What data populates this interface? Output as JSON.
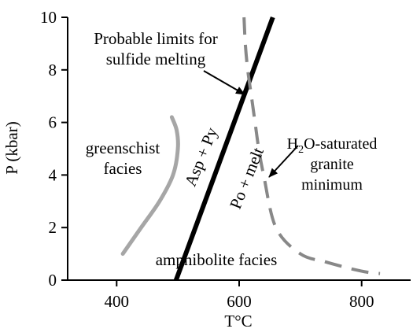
{
  "chart_data": {
    "type": "line",
    "xlabel": "T°C",
    "ylabel": "P (kbar)",
    "xlim": [
      320,
      880
    ],
    "ylim": [
      0,
      10
    ],
    "x_ticks": [
      400,
      600,
      800
    ],
    "y_ticks": [
      0,
      2,
      4,
      6,
      8,
      10
    ],
    "grid": false,
    "legend": "none",
    "series": [
      {
        "id": "asp-py-reaction",
        "style": "solid",
        "color": "#000000",
        "x": [
          497,
          655
        ],
        "y": [
          0,
          10
        ]
      },
      {
        "id": "greenschist-boundary",
        "style": "solid",
        "color": "#a6a6a6",
        "x": [
          410,
          440,
          470,
          492,
          500,
          498,
          490
        ],
        "y": [
          1.0,
          2.0,
          3.0,
          4.0,
          5.0,
          5.7,
          6.2
        ]
      },
      {
        "id": "granite-minimum",
        "style": "dashed",
        "color": "#888888",
        "x": [
          608,
          610,
          614,
          620,
          626,
          632,
          640,
          660,
          700,
          740,
          780,
          810,
          830
        ],
        "y": [
          10.0,
          9.0,
          8.0,
          7.0,
          6.0,
          5.0,
          4.0,
          2.0,
          1.0,
          0.7,
          0.45,
          0.3,
          0.25
        ]
      }
    ],
    "annotations": [
      {
        "id": "limits-line1",
        "text": "Probable limits for"
      },
      {
        "id": "limits-line2",
        "text": "sulfide melting"
      },
      {
        "id": "greenschist-line1",
        "text": "greenschist"
      },
      {
        "id": "greenschist-line2",
        "text": "facies"
      },
      {
        "id": "asp-py",
        "text": "Asp + Py"
      },
      {
        "id": "po-melt",
        "text": "Po + melt"
      },
      {
        "id": "h2o-prefix",
        "text": "H"
      },
      {
        "id": "h2o-sub",
        "text": "2"
      },
      {
        "id": "h2o-suffix",
        "text": "O-saturated"
      },
      {
        "id": "granite-line2",
        "text": "granite"
      },
      {
        "id": "granite-line3",
        "text": "minimum"
      },
      {
        "id": "amphibolite",
        "text": "amphibolite facies"
      }
    ]
  }
}
